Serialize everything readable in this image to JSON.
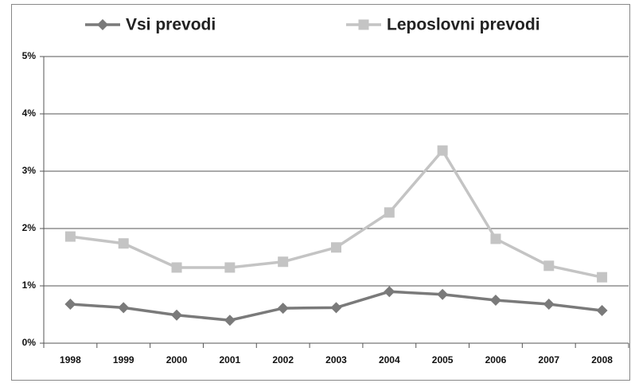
{
  "chart_data": {
    "type": "line",
    "categories": [
      "1998",
      "1999",
      "2000",
      "2001",
      "2002",
      "2003",
      "2004",
      "2005",
      "2006",
      "2007",
      "2008"
    ],
    "series": [
      {
        "name": "Vsi prevodi",
        "color": "#7a7a7a",
        "marker": "diamond",
        "values": [
          0.68,
          0.62,
          0.49,
          0.4,
          0.61,
          0.62,
          0.9,
          0.85,
          0.75,
          0.68,
          0.57
        ]
      },
      {
        "name": "Leposlovni prevodi",
        "color": "#c4c4c4",
        "marker": "square",
        "values": [
          1.86,
          1.74,
          1.32,
          1.32,
          1.42,
          1.67,
          2.28,
          3.36,
          1.82,
          1.35,
          1.15
        ]
      }
    ],
    "ylim": [
      0,
      5
    ],
    "yticks": [
      {
        "value": 0,
        "label": "0%"
      },
      {
        "value": 1,
        "label": "1%"
      },
      {
        "value": 2,
        "label": "2%"
      },
      {
        "value": 3,
        "label": "3%"
      },
      {
        "value": 4,
        "label": "4%"
      },
      {
        "value": 5,
        "label": "5%"
      }
    ],
    "grid": true,
    "legend": "top"
  }
}
